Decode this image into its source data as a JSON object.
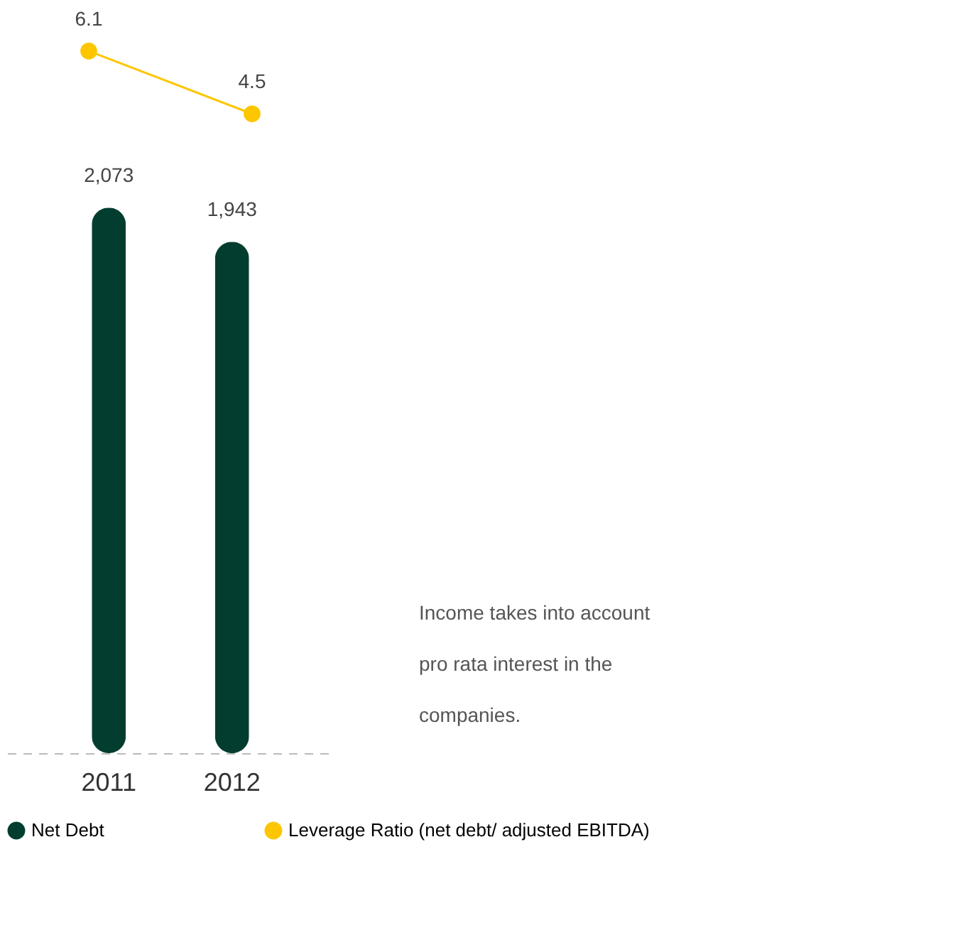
{
  "chart_data": [
    {
      "type": "line",
      "categories": [
        null,
        null
      ],
      "series": [
        {
          "name": "Leverage Ratio (net debt/ adjusted EBITDA)",
          "color": "#fdc600",
          "values": [
            6.1,
            4.5
          ],
          "marker": "circle"
        }
      ],
      "data_labels": true,
      "legend": "bottom",
      "grid": false,
      "tick_labels": false
    },
    {
      "type": "bar",
      "categories": [
        "2011",
        "2012"
      ],
      "series": [
        {
          "name": "Net Debt",
          "type": "bar",
          "color": "#033d30",
          "values": [
            2073,
            1943
          ],
          "value_labels": [
            "2,073",
            "1,943"
          ]
        }
      ],
      "legend": "bottom",
      "grid": false,
      "tick_labels": "x",
      "annotations": [
        "Income takes into account pro rata interest in the companies."
      ]
    }
  ]
}
